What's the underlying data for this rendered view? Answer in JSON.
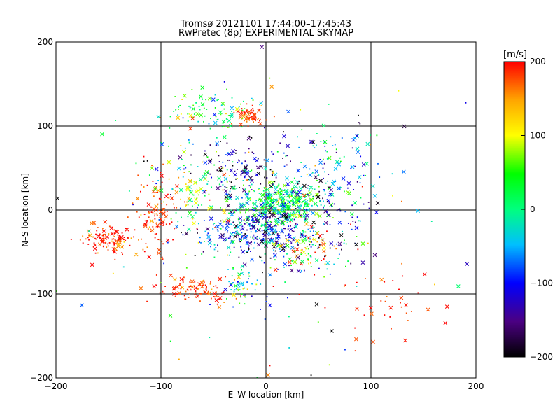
{
  "chart_data": {
    "type": "scatter",
    "title": "Tromsø 20121101 17:44:00–17:45:43",
    "subtitle": "RwPretec (8p) EXPERIMENTAL SKYMAP",
    "xlabel": "E–W location [km]",
    "ylabel": "N–S location [km]",
    "xlim": [
      -200,
      200
    ],
    "ylim": [
      -200,
      200
    ],
    "xticks": [
      -200,
      -100,
      0,
      100,
      200
    ],
    "yticks": [
      -200,
      -100,
      0,
      100,
      200
    ],
    "grid_x": [
      -100,
      0,
      100
    ],
    "grid_y": [
      -100,
      0,
      100
    ],
    "colorbar": {
      "label": "[m/s]",
      "min": -200,
      "max": 200,
      "ticks": [
        200,
        100,
        0,
        -100,
        -200
      ],
      "colormap": [
        "#000000",
        "#4b0082",
        "#0000ff",
        "#00bfff",
        "#00ff7f",
        "#00ff00",
        "#ffff00",
        "#ffa500",
        "#ff0000"
      ]
    },
    "marker_types": [
      "cross",
      "dot"
    ],
    "clusters": [
      {
        "center": [
          15,
          10
        ],
        "spread": [
          20,
          12
        ],
        "count": 380,
        "velocity": 20,
        "velocity_spread": 45
      },
      {
        "center": [
          -10,
          -25
        ],
        "spread": [
          25,
          15
        ],
        "count": 320,
        "velocity": -100,
        "velocity_spread": 60
      },
      {
        "center": [
          -20,
          50
        ],
        "spread": [
          22,
          15
        ],
        "count": 110,
        "velocity": -150,
        "velocity_spread": 50
      },
      {
        "center": [
          -15,
          112
        ],
        "spread": [
          6,
          5
        ],
        "count": 70,
        "velocity": 185,
        "velocity_spread": 15
      },
      {
        "center": [
          -50,
          115
        ],
        "spread": [
          22,
          12
        ],
        "count": 90,
        "velocity": 40,
        "velocity_spread": 60
      },
      {
        "center": [
          -150,
          -35
        ],
        "spread": [
          12,
          8
        ],
        "count": 120,
        "velocity": 190,
        "velocity_spread": 25
      },
      {
        "center": [
          -105,
          -5
        ],
        "spread": [
          10,
          25
        ],
        "count": 110,
        "velocity": 185,
        "velocity_spread": 20
      },
      {
        "center": [
          -65,
          -95
        ],
        "spread": [
          18,
          8
        ],
        "count": 100,
        "velocity": 185,
        "velocity_spread": 20
      },
      {
        "center": [
          -25,
          -90
        ],
        "spread": [
          10,
          10
        ],
        "count": 60,
        "velocity": -10,
        "velocity_spread": 60
      },
      {
        "center": [
          40,
          -45
        ],
        "spread": [
          15,
          12
        ],
        "count": 90,
        "velocity": 100,
        "velocity_spread": 80
      },
      {
        "center": [
          120,
          -105
        ],
        "spread": [
          25,
          25
        ],
        "count": 40,
        "velocity": 190,
        "velocity_spread": 25
      },
      {
        "center": [
          -60,
          30
        ],
        "spread": [
          25,
          25
        ],
        "count": 110,
        "velocity": 40,
        "velocity_spread": 80
      },
      {
        "center": [
          60,
          40
        ],
        "spread": [
          30,
          30
        ],
        "count": 120,
        "velocity": -60,
        "velocity_spread": 70
      },
      {
        "center": [
          40,
          -20
        ],
        "spread": [
          25,
          30
        ],
        "count": 120,
        "velocity": -120,
        "velocity_spread": 60
      },
      {
        "center": [
          0,
          0
        ],
        "spread": [
          90,
          80
        ],
        "count": 220,
        "velocity": 0,
        "velocity_spread": 120
      }
    ]
  }
}
